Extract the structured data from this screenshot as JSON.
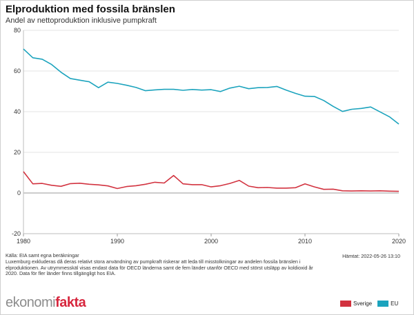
{
  "title": "Elproduktion med fossila bränslen",
  "subtitle": "Andel av nettoproduktion inklusive pumpkraft",
  "source": "Källa: EIA samt egna beräkningar",
  "note": "Luxemburg exkluderas då deras relativt stora användning av pumpkraft riskerar att leda till misstolkningar av andelen fossila bränslen i elproduktionen. Av utrymmesskäl visas endast data för OECD länderna samt de fem länder utanför OECD med störst utsläpp av koldioxid år 2020. Data för fler länder finns tillgängligt hos EIA.",
  "fetched": "Hämtat: 2022-05-26 13:10",
  "logo": {
    "part1": "ekonomi",
    "part2": "fakta"
  },
  "colors": {
    "sverige": "#d2323f",
    "eu": "#1ba3bd"
  },
  "chart_data": {
    "type": "line",
    "title": "Elproduktion med fossila bränslen",
    "subtitle": "Andel av nettoproduktion inklusive pumpkraft",
    "xlim": [
      1980,
      2020
    ],
    "ylim": [
      -20,
      80
    ],
    "x_ticks": [
      1980,
      1990,
      2000,
      2010,
      2020
    ],
    "y_ticks": [
      -20,
      0,
      20,
      40,
      60,
      80
    ],
    "grid": "horizontal",
    "legend_position": "bottom-right",
    "x": [
      1980,
      1981,
      1982,
      1983,
      1984,
      1985,
      1986,
      1987,
      1988,
      1989,
      1990,
      1991,
      1992,
      1993,
      1994,
      1995,
      1996,
      1997,
      1998,
      1999,
      2000,
      2001,
      2002,
      2003,
      2004,
      2005,
      2006,
      2007,
      2008,
      2009,
      2010,
      2011,
      2012,
      2013,
      2014,
      2015,
      2016,
      2017,
      2018,
      2019,
      2020
    ],
    "series": [
      {
        "name": "Sverige",
        "color": "#d2323f",
        "values": [
          10.5,
          4.5,
          4.7,
          3.8,
          3.3,
          4.6,
          4.8,
          4.3,
          4.0,
          3.5,
          2.2,
          3.2,
          3.6,
          4.3,
          5.3,
          4.9,
          8.6,
          4.5,
          4.1,
          4.1,
          3.0,
          3.6,
          4.7,
          6.2,
          3.4,
          2.6,
          2.7,
          2.4,
          2.4,
          2.6,
          4.5,
          3.0,
          1.8,
          1.9,
          1.1,
          1.0,
          1.1,
          1.0,
          1.1,
          0.9,
          0.8
        ]
      },
      {
        "name": "EU",
        "color": "#1ba3bd",
        "values": [
          70.8,
          66.5,
          65.8,
          63.2,
          59.4,
          56.3,
          55.5,
          54.7,
          51.8,
          54.5,
          53.9,
          53.0,
          51.9,
          50.3,
          50.7,
          51.0,
          51.0,
          50.5,
          50.9,
          50.6,
          50.8,
          49.9,
          51.6,
          52.5,
          51.3,
          51.8,
          51.9,
          52.4,
          50.6,
          49.0,
          47.6,
          47.5,
          45.5,
          42.6,
          40.1,
          41.2,
          41.6,
          42.3,
          39.9,
          37.5,
          33.9
        ]
      }
    ]
  }
}
